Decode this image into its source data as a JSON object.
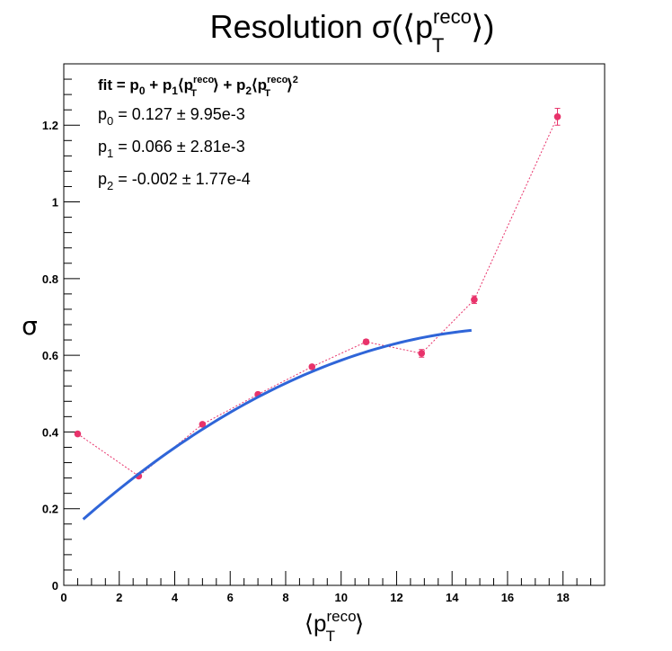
{
  "chart_data": {
    "type": "scatter",
    "title": {
      "main": "Resolution σ(⟨p",
      "sup": "reco",
      "sub": "T",
      "end": "⟩)"
    },
    "ylabel": "σ",
    "xlabel": {
      "main": "⟨p",
      "sup": "reco",
      "sub": "T",
      "end": "⟩"
    },
    "xlim": [
      0,
      19.5
    ],
    "ylim": [
      0,
      1.36
    ],
    "x_ticks": [
      0,
      2,
      4,
      6,
      8,
      10,
      12,
      14,
      16,
      18
    ],
    "x_tick_labels": [
      "0",
      "2",
      "4",
      "6",
      "8",
      "10",
      "12",
      "14",
      "16",
      "18"
    ],
    "y_ticks": [
      0,
      0.2,
      0.4,
      0.6,
      0.8,
      1.0,
      1.2
    ],
    "y_tick_labels": [
      "0",
      "0.2",
      "0.4",
      "0.6",
      "0.8",
      "1",
      "1.2"
    ],
    "grid": false,
    "series": [
      {
        "style": "markers-with-dashed-line",
        "color": "#e8336b",
        "x": [
          0.5,
          2.7,
          5.0,
          7.0,
          8.95,
          10.9,
          12.9,
          14.8,
          17.8
        ],
        "y": [
          0.395,
          0.285,
          0.42,
          0.498,
          0.57,
          0.635,
          0.605,
          0.745,
          1.222
        ],
        "yerr": [
          0.003,
          0.004,
          0.004,
          0.004,
          0.005,
          0.006,
          0.01,
          0.01,
          0.022
        ]
      },
      {
        "style": "fit-line",
        "color": "#2f65d8",
        "xrange": [
          0.7,
          14.7
        ],
        "p0": 0.127,
        "p1": 0.066,
        "p2": -0.002
      }
    ],
    "annotations": {
      "fit_formula": {
        "a": "fit = p",
        "a_sub": "0",
        "b": " + p",
        "b_sub": "1",
        "c": "⟨p",
        "c_sup": "reco",
        "c_sub": "T",
        "d": "⟩ + p",
        "d_sub": "2",
        "e": "⟨p",
        "e_sup": "reco",
        "e_sub": "T",
        "f": "⟩",
        "f_sup": "2"
      },
      "params": [
        {
          "name": "p",
          "sub": "0",
          "value": " = 0.127 ± 9.95e-3"
        },
        {
          "name": "p",
          "sub": "1",
          "value": " = 0.066 ± 2.81e-3"
        },
        {
          "name": "p",
          "sub": "2",
          "value": " = -0.002 ± 1.77e-4"
        }
      ]
    }
  }
}
